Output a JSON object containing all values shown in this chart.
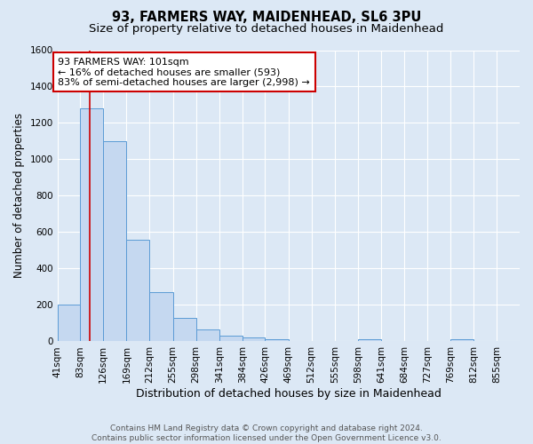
{
  "title1": "93, FARMERS WAY, MAIDENHEAD, SL6 3PU",
  "title2": "Size of property relative to detached houses in Maidenhead",
  "xlabel": "Distribution of detached houses by size in Maidenhead",
  "ylabel": "Number of detached properties",
  "footer1": "Contains HM Land Registry data © Crown copyright and database right 2024.",
  "footer2": "Contains public sector information licensed under the Open Government Licence v3.0.",
  "bin_edges": [
    41,
    83,
    126,
    169,
    212,
    255,
    298,
    341,
    384,
    426,
    469,
    512,
    555,
    598,
    641,
    684,
    727,
    769,
    812,
    855,
    898
  ],
  "bar_heights": [
    200,
    1280,
    1100,
    560,
    270,
    130,
    65,
    30,
    20,
    10,
    0,
    0,
    0,
    10,
    0,
    0,
    0,
    10,
    0,
    0
  ],
  "bar_color": "#c5d8f0",
  "bar_edge_color": "#5b9bd5",
  "property_size": 101,
  "property_line_color": "#cc0000",
  "annotation_line1": "93 FARMERS WAY: 101sqm",
  "annotation_line2": "← 16% of detached houses are smaller (593)",
  "annotation_line3": "83% of semi-detached houses are larger (2,998) →",
  "annotation_box_color": "#ffffff",
  "annotation_border_color": "#cc0000",
  "ylim": [
    0,
    1600
  ],
  "yticks": [
    0,
    200,
    400,
    600,
    800,
    1000,
    1200,
    1400,
    1600
  ],
  "background_color": "#dce8f5",
  "grid_color": "#ffffff",
  "title1_fontsize": 10.5,
  "title2_fontsize": 9.5,
  "xlabel_fontsize": 9,
  "ylabel_fontsize": 8.5,
  "tick_fontsize": 7.5,
  "annotation_fontsize": 8,
  "footer_fontsize": 6.5
}
